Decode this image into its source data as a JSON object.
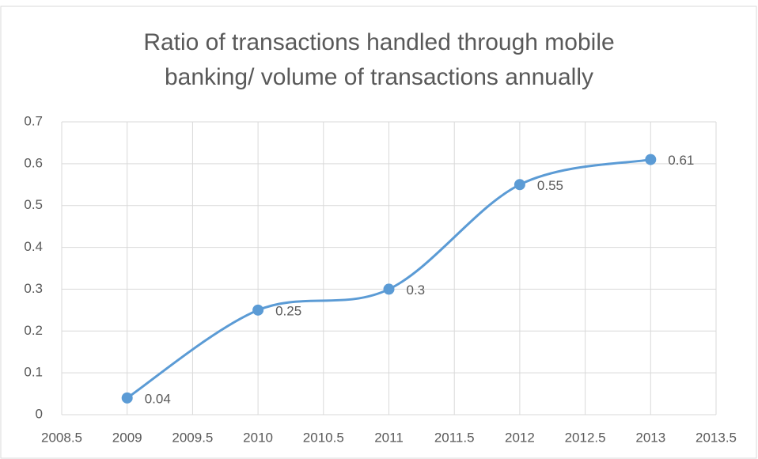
{
  "chart_data": {
    "type": "line",
    "title": "Ratio of transactions handled through mobile banking/ volume of transactions annually",
    "x": [
      2009,
      2010,
      2011,
      2012,
      2013
    ],
    "series": [
      {
        "name": "Ratio",
        "color": "#5b9bd5",
        "values": [
          0.04,
          0.25,
          0.3,
          0.55,
          0.61
        ]
      }
    ],
    "xlim": [
      2008.5,
      2013.5
    ],
    "xticks": [
      2008.5,
      2009,
      2009.5,
      2010,
      2010.5,
      2011,
      2011.5,
      2012,
      2012.5,
      2013,
      2013.5
    ],
    "ylim": [
      0,
      0.7
    ],
    "yticks": [
      0,
      0.1,
      0.2,
      0.3,
      0.4,
      0.5,
      0.6,
      0.7
    ],
    "grid": true,
    "smooth": true
  }
}
